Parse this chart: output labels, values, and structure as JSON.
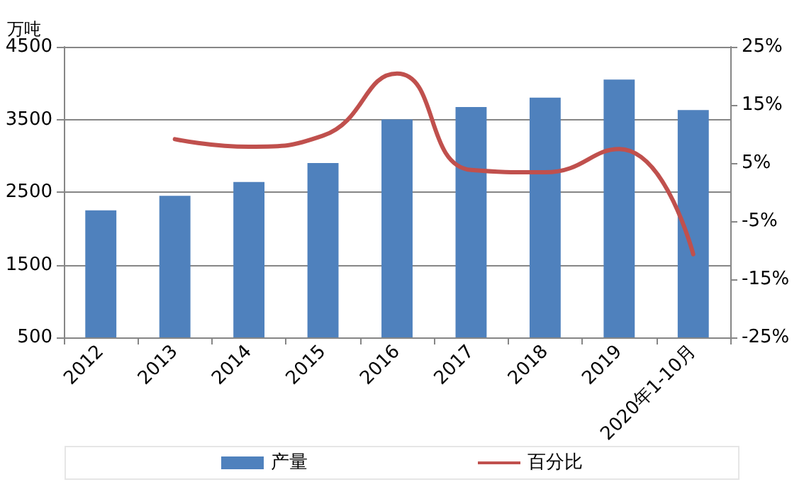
{
  "chart_data": {
    "type": "bar",
    "ylabel": "万吨",
    "categories": [
      "2012",
      "2013",
      "2014",
      "2015",
      "2016",
      "2017",
      "2018",
      "2019",
      "2020年1-10月"
    ],
    "series": [
      {
        "name": "产量",
        "color": "#4f81bd",
        "values": [
          2250,
          2450,
          2640,
          2900,
          3500,
          3670,
          3800,
          4050,
          3630
        ]
      },
      {
        "name": "百分比",
        "type": "line",
        "axis": "y2",
        "color": "#c0504d",
        "values": [
          null,
          9.1,
          7.8,
          9.7,
          20.4,
          3.8,
          3.4,
          7.4,
          -10.7
        ]
      }
    ],
    "ylim": [
      500,
      4500
    ],
    "yticks": [
      500,
      1500,
      2500,
      3500,
      4500
    ],
    "y2lim": [
      -25,
      25
    ],
    "y2ticks": [
      {
        "value": -25,
        "label": "-25%"
      },
      {
        "value": -15,
        "label": "-15%"
      },
      {
        "value": -5,
        "label": "-5%"
      },
      {
        "value": 5,
        "label": "5%"
      },
      {
        "value": 15,
        "label": "15%"
      },
      {
        "value": 25,
        "label": "25%"
      }
    ],
    "grid": "y",
    "legend": "bottom",
    "marker": "none",
    "line_style": "solid"
  }
}
